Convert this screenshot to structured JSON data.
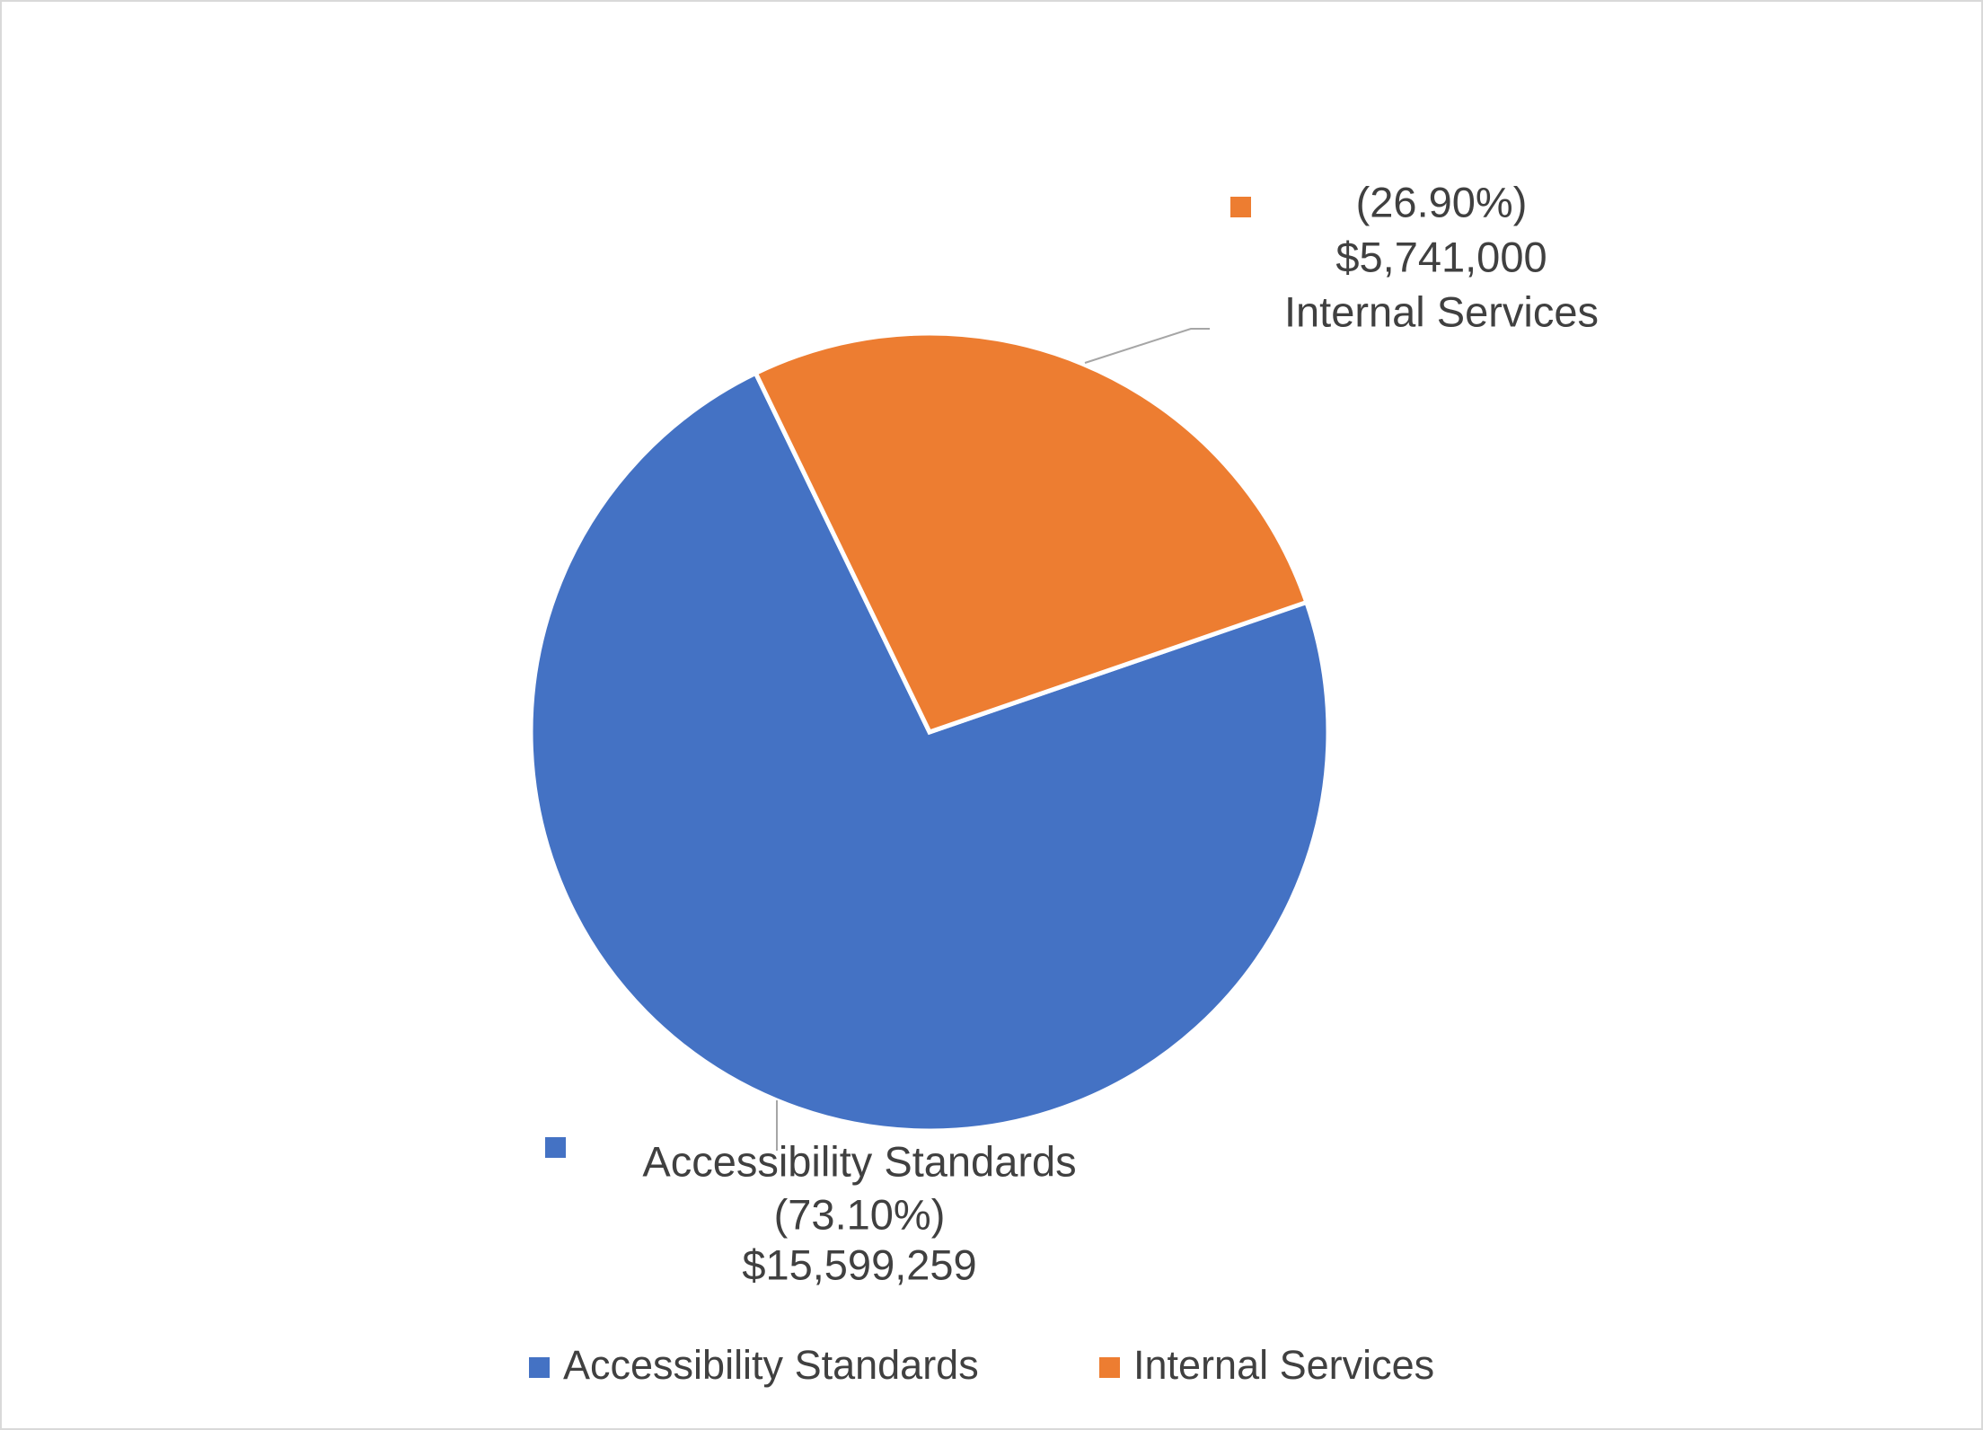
{
  "chart_data": {
    "type": "pie",
    "categories": [
      "Accessibility Standards",
      "Internal Services"
    ],
    "values": [
      15599259,
      5741000
    ],
    "value_labels": [
      "$15,599,259",
      "$5,741,000"
    ],
    "percent_labels": [
      "(73.10%)",
      "(26.90%)"
    ],
    "colors": [
      "#4472c4",
      "#ed7d31"
    ],
    "legend": "bottom"
  }
}
